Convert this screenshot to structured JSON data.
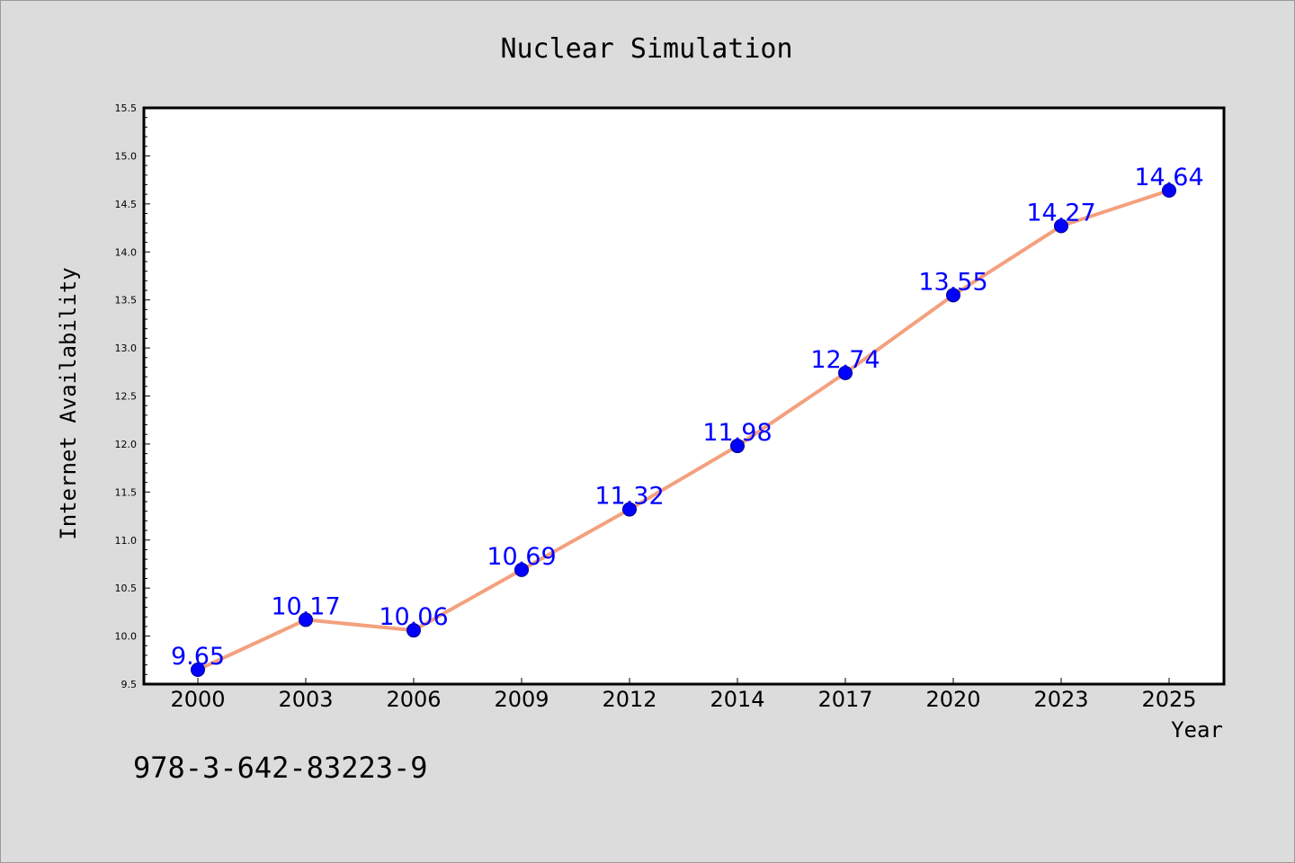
{
  "chart_data": {
    "type": "line",
    "title": "Nuclear Simulation",
    "xlabel": "Year",
    "ylabel": "Internet Availability",
    "categories": [
      "2000",
      "2003",
      "2006",
      "2009",
      "2012",
      "2014",
      "2017",
      "2020",
      "2023",
      "2025"
    ],
    "series": [
      {
        "values": [
          9.65,
          10.17,
          10.06,
          10.69,
          11.32,
          11.98,
          12.74,
          13.55,
          14.27,
          14.64
        ],
        "data_labels": [
          "9.65",
          "10.17",
          "10.06",
          "10.69",
          "11.32",
          "11.98",
          "12.74",
          "13.55",
          "14.27",
          "14.64"
        ],
        "line_color": "#f4a07e",
        "marker_color": "#0000ff"
      }
    ],
    "ylim": [
      9.5,
      15.5
    ],
    "yticks": [
      9.5,
      10.0,
      10.5,
      11.0,
      11.5,
      12.0,
      12.5,
      13.0,
      13.5,
      14.0,
      14.5,
      15.0,
      15.5
    ],
    "ytick_labels": [
      "9.5",
      "10.0",
      "10.5",
      "11.0",
      "11.5",
      "12.0",
      "12.5",
      "13.0",
      "13.5",
      "14.0",
      "14.5",
      "15.0",
      "15.5"
    ],
    "grid": false,
    "legend": "none"
  },
  "annotation": {
    "isbn": "978-3-642-83223-9"
  },
  "colors": {
    "background": "#dcdcdc",
    "plot_background": "#ffffff",
    "line": "#f4a07e",
    "marker": "#0000ff",
    "data_label": "#0000ff"
  }
}
